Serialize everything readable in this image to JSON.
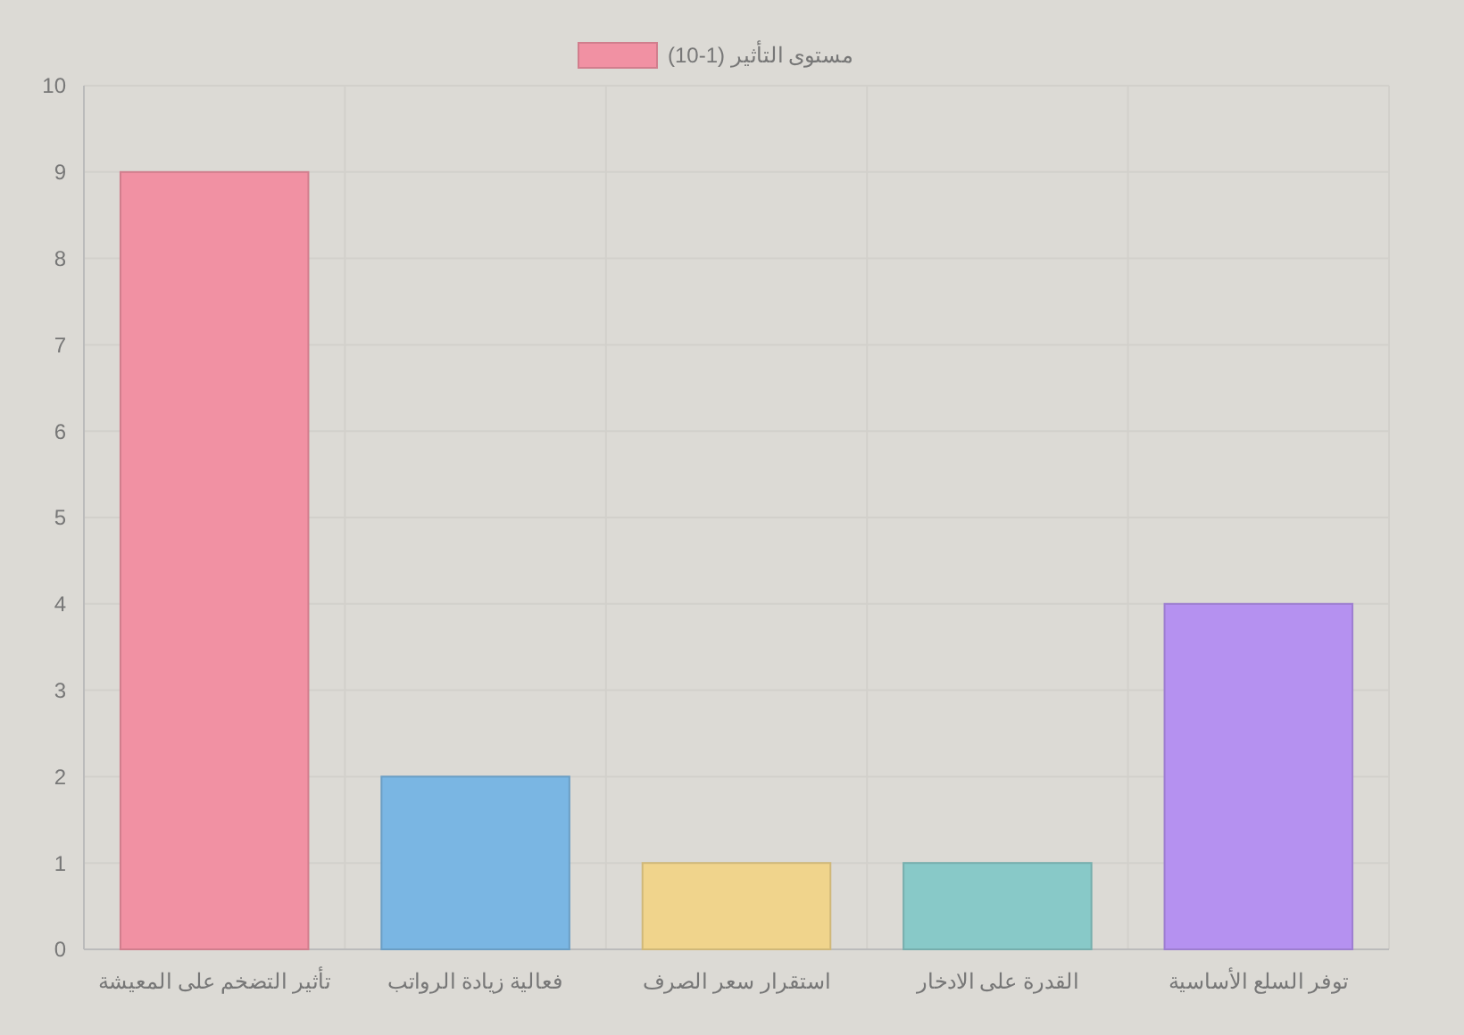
{
  "chart_data": {
    "type": "bar",
    "categories": [
      "تأثير التضخم على المعيشة",
      "فعالية زيادة الرواتب",
      "استقرار سعر الصرف",
      "القدرة على الادخار",
      "توفر السلع الأساسية"
    ],
    "series": [
      {
        "name": "مستوى التأثير (1-10)",
        "color": "#f191a3",
        "colors": [
          "#f191a3",
          "#7ab6e3",
          "#f0d48c",
          "#88c9c8",
          "#b591f0"
        ],
        "values": [
          9,
          2,
          1,
          1,
          4
        ]
      }
    ],
    "ylim": [
      0,
      10
    ],
    "yticks": [
      0,
      1,
      2,
      3,
      4,
      5,
      6,
      7,
      8,
      9,
      10
    ],
    "grid": true,
    "legend": "top"
  }
}
